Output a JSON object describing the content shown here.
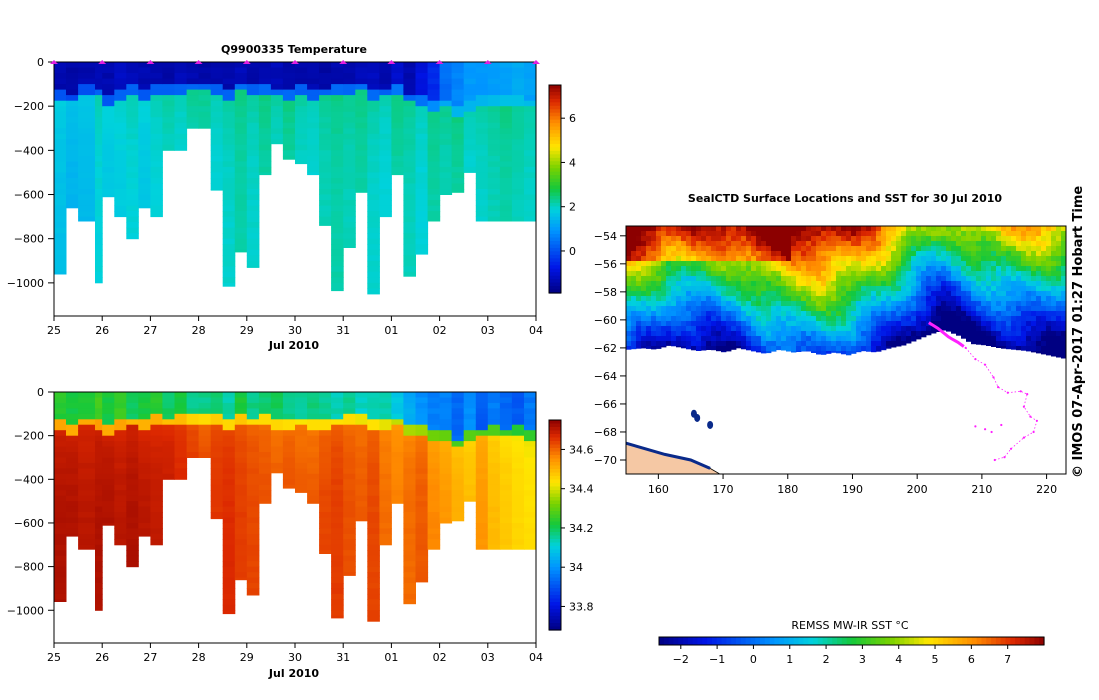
{
  "credit": "© IMOS 07-Apr-2017 01:27 Hobart Time",
  "chart_data": [
    {
      "type": "heatmap",
      "title": "Q9900335  Temperature",
      "xlabel": "Jul 2010",
      "ylabel": "",
      "x_ticks": [
        "25",
        "26",
        "27",
        "28",
        "29",
        "30",
        "31",
        "01",
        "02",
        "03",
        "04"
      ],
      "y_ticks": [
        0,
        -200,
        -400,
        -600,
        -800,
        -1000
      ],
      "ylim": [
        -1150,
        0
      ],
      "colorbar": {
        "min": -1.9,
        "max": 7.5,
        "ticks": [
          0,
          2,
          4,
          6
        ]
      },
      "profile_x": [
        0.0,
        0.25,
        0.5,
        0.85,
        1.0,
        1.25,
        1.5,
        1.75,
        2.0,
        2.25,
        2.5,
        2.75,
        3.0,
        3.25,
        3.5,
        3.75,
        4.0,
        4.25,
        4.5,
        4.75,
        5.0,
        5.25,
        5.5,
        5.75,
        6.0,
        6.25,
        6.5,
        6.75,
        7.0,
        7.25,
        7.5,
        7.75,
        8.0,
        8.25,
        8.5,
        8.75,
        9.0,
        9.25,
        9.5,
        9.75,
        10.0
      ],
      "profile_depth": [
        -960,
        -660,
        -720,
        -1000,
        -610,
        -700,
        -800,
        -660,
        -700,
        -400,
        -400,
        -300,
        -300,
        -580,
        -1015,
        -860,
        -930,
        -510,
        -370,
        -440,
        -460,
        -510,
        -740,
        -1035,
        -840,
        -590,
        -1050,
        -700,
        -510,
        -970,
        -870,
        -720,
        -600,
        -590,
        -500,
        -720,
        -720,
        -720,
        -720,
        -720,
        -720
      ],
      "surface_temp": [
        -1.5,
        -1.6,
        -1.5,
        -1.4,
        -1.5,
        -1.3,
        -1.4,
        -1.5,
        -1.5,
        -1.6,
        -1.4,
        -1.5,
        -1.6,
        -1.5,
        -1.5,
        -1.4,
        -1.6,
        -1.5,
        -1.4,
        -1.5,
        -1.6,
        -1.5,
        -1.6,
        -1.5,
        -1.5,
        -1.4,
        -1.3,
        -1.5,
        -1.2,
        -1.5,
        -1.0,
        -0.6,
        0.3,
        0.6,
        0.9,
        0.8,
        0.9,
        1.0,
        1.1,
        1.0,
        1.1
      ],
      "deep_temp": [
        1.6,
        1.4,
        1.5,
        1.9,
        1.7,
        1.8,
        1.9,
        1.7,
        1.9,
        2.0,
        1.9,
        2.1,
        2.1,
        1.9,
        2.0,
        2.2,
        2.0,
        2.2,
        2.0,
        2.2,
        2.0,
        1.9,
        2.1,
        2.2,
        2.1,
        2.2,
        2.0,
        1.9,
        2.2,
        2.1,
        1.9,
        2.2,
        2.1,
        2.2,
        1.9,
        2.0,
        2.1,
        2.2,
        2.1,
        2.0,
        2.2
      ],
      "thermocline_depth": [
        -150,
        -160,
        -130,
        -140,
        -170,
        -150,
        -130,
        -150,
        -120,
        -130,
        -120,
        -110,
        -110,
        -120,
        -150,
        -110,
        -130,
        -120,
        -140,
        -150,
        -130,
        -150,
        -140,
        -130,
        -120,
        -110,
        -150,
        -140,
        -130,
        -160,
        -170,
        -200,
        -190,
        -230,
        -200,
        -180,
        -170,
        -180,
        -170,
        -190,
        -180
      ],
      "markers_x": [
        0,
        1,
        2,
        3,
        4,
        5,
        6,
        7,
        8,
        9,
        10
      ]
    },
    {
      "type": "heatmap",
      "title": "",
      "xlabel": "Jul 2010",
      "ylabel": "",
      "x_ticks": [
        "25",
        "26",
        "27",
        "28",
        "29",
        "30",
        "31",
        "01",
        "02",
        "03",
        "04"
      ],
      "y_ticks": [
        0,
        -200,
        -400,
        -600,
        -800,
        -1000
      ],
      "ylim": [
        -1150,
        0
      ],
      "colorbar": {
        "min": 33.68,
        "max": 34.75,
        "ticks": [
          33.8,
          34,
          34.2,
          34.4,
          34.6
        ]
      },
      "surface_sal": [
        34.22,
        34.2,
        34.22,
        34.25,
        34.2,
        34.24,
        34.18,
        34.2,
        34.22,
        34.17,
        34.2,
        34.15,
        34.15,
        34.17,
        34.13,
        34.2,
        34.15,
        34.16,
        34.18,
        34.15,
        34.13,
        34.16,
        34.14,
        34.12,
        34.15,
        34.11,
        34.13,
        34.12,
        34.08,
        34.02,
        33.98,
        33.95,
        33.95,
        33.92,
        33.97,
        33.9,
        33.95,
        33.92,
        33.9,
        33.94,
        33.9
      ],
      "deep_sal": [
        34.72,
        34.72,
        34.71,
        34.72,
        34.72,
        34.71,
        34.72,
        34.71,
        34.7,
        34.7,
        34.68,
        34.66,
        34.64,
        34.66,
        34.67,
        34.65,
        34.64,
        34.63,
        34.62,
        34.63,
        34.62,
        34.62,
        34.64,
        34.65,
        34.63,
        34.62,
        34.64,
        34.6,
        34.58,
        34.6,
        34.62,
        34.57,
        34.55,
        34.52,
        34.5,
        34.55,
        34.5,
        34.48,
        34.46,
        34.45,
        34.44
      ]
    },
    {
      "type": "heatmap",
      "title": "SealCTD Surface Locations and SST for 30 Jul 2010",
      "xlabel": "",
      "ylabel": "",
      "x_ticks": [
        160,
        170,
        180,
        190,
        200,
        210,
        220
      ],
      "y_ticks": [
        -54,
        -56,
        -58,
        -60,
        -62,
        -64,
        -66,
        -68,
        -70
      ],
      "xlim": [
        155,
        223
      ],
      "ylim": [
        -71,
        -53.3
      ],
      "colorbar_label": "REMSS MW-IR SST °C",
      "colorbar": {
        "min": -2.6,
        "max": 8.0,
        "ticks": [
          -2,
          -1,
          0,
          1,
          2,
          3,
          4,
          5,
          6,
          7
        ]
      },
      "ice_edge_lat": [
        -62.1,
        -62.0,
        -62.1,
        -61.8,
        -62.0,
        -62.2,
        -62.1,
        -62.3,
        -62.0,
        -62.2,
        -62.4,
        -62.1,
        -62.3,
        -62.2,
        -62.5,
        -62.3,
        -62.5,
        -62.2,
        -62.3,
        -62.0,
        -61.8,
        -61.4,
        -61.0,
        -60.7,
        -61.1,
        -61.7,
        -61.8,
        -62.0,
        -62.1,
        -62.2,
        -62.4,
        -62.6,
        -62.8
      ],
      "seal_track_surface": [
        [
          201.8,
          -60.2
        ],
        [
          202.5,
          -60.4
        ],
        [
          203.2,
          -60.6
        ],
        [
          204.0,
          -60.9
        ],
        [
          204.8,
          -61.2
        ],
        [
          205.5,
          -61.4
        ],
        [
          206.3,
          -61.6
        ],
        [
          207.2,
          -61.9
        ]
      ],
      "seal_track_profiles": [
        [
          207.5,
          -62.0
        ],
        [
          209.0,
          -62.8
        ],
        [
          210.5,
          -63.2
        ],
        [
          211.8,
          -64.1
        ],
        [
          212.5,
          -64.8
        ],
        [
          214.0,
          -65.2
        ],
        [
          216.0,
          -65.1
        ],
        [
          217.0,
          -65.3
        ],
        [
          216.5,
          -66.2
        ],
        [
          217.5,
          -66.9
        ],
        [
          218.5,
          -67.2
        ],
        [
          218.0,
          -68.0
        ],
        [
          216.5,
          -68.4
        ],
        [
          214.5,
          -69.2
        ],
        [
          213.5,
          -69.8
        ],
        [
          212.0,
          -70.0
        ],
        [
          211.5,
          -68.0
        ],
        [
          210.5,
          -67.8
        ],
        [
          209.0,
          -67.6
        ],
        [
          213.0,
          -67.5
        ]
      ],
      "islands": [
        [
          165.5,
          -66.7
        ],
        [
          166.0,
          -67.0
        ],
        [
          168.0,
          -67.5
        ]
      ]
    }
  ]
}
